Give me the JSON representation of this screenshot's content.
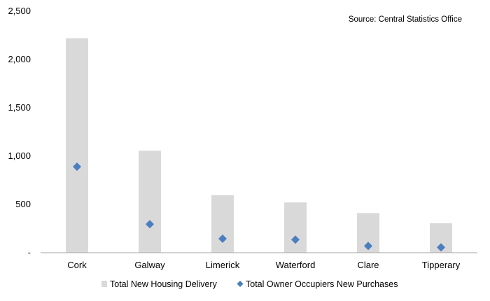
{
  "chart_data": {
    "type": "bar",
    "source": "Source: Central Statistics Office",
    "categories": [
      "Cork",
      "Galway",
      "Limerick",
      "Waterford",
      "Clare",
      "Tipperary"
    ],
    "series": [
      {
        "name": "Total New Housing Delivery",
        "kind": "bar",
        "color": "#d9d9d9",
        "values": [
          2220,
          1055,
          595,
          520,
          410,
          305
        ]
      },
      {
        "name": "Total Owner Occupiers New Purchases",
        "kind": "marker",
        "marker": "diamond",
        "color": "#4a7ebf",
        "values": [
          890,
          295,
          145,
          135,
          70,
          55
        ]
      }
    ],
    "ylim": [
      0,
      2500
    ],
    "yticks": [
      {
        "value": 0,
        "label": "-"
      },
      {
        "value": 500,
        "label": "500"
      },
      {
        "value": 1000,
        "label": "1,000"
      },
      {
        "value": 1500,
        "label": "1,500"
      },
      {
        "value": 2000,
        "label": "2,000"
      },
      {
        "value": 2500,
        "label": "2,500"
      }
    ],
    "grid": false,
    "legend_position": "bottom"
  }
}
